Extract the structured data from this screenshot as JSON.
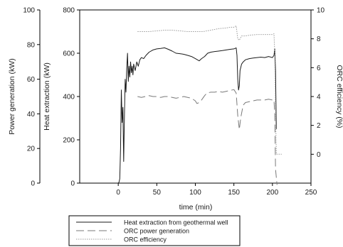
{
  "chart_data": {
    "type": "line",
    "xlabel": "time (min)",
    "x_ticks": [
      "0",
      "50",
      "100",
      "150",
      "200",
      "250"
    ],
    "xlim": [
      -50,
      250
    ],
    "y_axes": [
      {
        "id": "power",
        "label": "Power generation (kW)",
        "ylim": [
          0,
          100
        ],
        "ticks": [
          "0",
          "20",
          "40",
          "60",
          "80",
          "100"
        ]
      },
      {
        "id": "heat",
        "label": "Heat extraction (kW)",
        "ylim": [
          0,
          800
        ],
        "ticks": [
          "0",
          "200",
          "400",
          "600",
          "800"
        ]
      },
      {
        "id": "eff",
        "label": "ORC efficiency (%)",
        "ylim": [
          -2,
          10
        ],
        "ticks": [
          "0",
          "2",
          "4",
          "6",
          "8",
          "10"
        ]
      }
    ],
    "grid": false,
    "legend_position": "below",
    "series": [
      {
        "name": "Heat extraction from geothermal well",
        "axis": "heat",
        "style": "solid",
        "points": [
          [
            0,
            0
          ],
          [
            1,
            5
          ],
          [
            2,
            20
          ],
          [
            3,
            160
          ],
          [
            4,
            430
          ],
          [
            5,
            280
          ],
          [
            6,
            350
          ],
          [
            7,
            100
          ],
          [
            8,
            300
          ],
          [
            9,
            480
          ],
          [
            10,
            420
          ],
          [
            11,
            530
          ],
          [
            12,
            600
          ],
          [
            13,
            470
          ],
          [
            14,
            540
          ],
          [
            15,
            490
          ],
          [
            16,
            560
          ],
          [
            17,
            510
          ],
          [
            18,
            540
          ],
          [
            19,
            500
          ],
          [
            20,
            550
          ],
          [
            22,
            520
          ],
          [
            24,
            560
          ],
          [
            26,
            540
          ],
          [
            28,
            570
          ],
          [
            30,
            580
          ],
          [
            33,
            575
          ],
          [
            36,
            590
          ],
          [
            40,
            605
          ],
          [
            45,
            615
          ],
          [
            50,
            620
          ],
          [
            55,
            622
          ],
          [
            60,
            625
          ],
          [
            65,
            618
          ],
          [
            70,
            610
          ],
          [
            75,
            600
          ],
          [
            80,
            598
          ],
          [
            85,
            595
          ],
          [
            90,
            590
          ],
          [
            95,
            585
          ],
          [
            100,
            575
          ],
          [
            105,
            565
          ],
          [
            108,
            575
          ],
          [
            112,
            585
          ],
          [
            116,
            600
          ],
          [
            120,
            605
          ],
          [
            125,
            608
          ],
          [
            130,
            610
          ],
          [
            135,
            612
          ],
          [
            140,
            615
          ],
          [
            145,
            618
          ],
          [
            150,
            620
          ],
          [
            153,
            625
          ],
          [
            154,
            590
          ],
          [
            155,
            480
          ],
          [
            156,
            430
          ],
          [
            157,
            450
          ],
          [
            158,
            520
          ],
          [
            160,
            550
          ],
          [
            162,
            560
          ],
          [
            165,
            570
          ],
          [
            170,
            575
          ],
          [
            175,
            578
          ],
          [
            180,
            580
          ],
          [
            185,
            582
          ],
          [
            190,
            580
          ],
          [
            195,
            585
          ],
          [
            200,
            580
          ],
          [
            202,
            590
          ],
          [
            203,
            620
          ],
          [
            204,
            520
          ],
          [
            205,
            250
          ]
        ]
      },
      {
        "name": "ORC power generation",
        "axis": "power",
        "style": "dashed",
        "points": [
          [
            25,
            50
          ],
          [
            30,
            49.5
          ],
          [
            35,
            50
          ],
          [
            40,
            50.5
          ],
          [
            45,
            50
          ],
          [
            50,
            50
          ],
          [
            55,
            49.5
          ],
          [
            60,
            50
          ],
          [
            65,
            50
          ],
          [
            70,
            49.5
          ],
          [
            75,
            49
          ],
          [
            80,
            49.5
          ],
          [
            85,
            50
          ],
          [
            90,
            49.5
          ],
          [
            95,
            49
          ],
          [
            100,
            47.5
          ],
          [
            102,
            46
          ],
          [
            105,
            46.5
          ],
          [
            108,
            48
          ],
          [
            112,
            50.5
          ],
          [
            115,
            52
          ],
          [
            120,
            52.5
          ],
          [
            125,
            52.5
          ],
          [
            130,
            53
          ],
          [
            135,
            52.5
          ],
          [
            140,
            53
          ],
          [
            145,
            53.5
          ],
          [
            150,
            54
          ],
          [
            153,
            52
          ],
          [
            155,
            39
          ],
          [
            157,
            31
          ],
          [
            159,
            38
          ],
          [
            162,
            45
          ],
          [
            165,
            46.5
          ],
          [
            170,
            47
          ],
          [
            175,
            47.5
          ],
          [
            180,
            48
          ],
          [
            185,
            48
          ],
          [
            190,
            48
          ],
          [
            195,
            48.5
          ],
          [
            200,
            48
          ],
          [
            202,
            48
          ],
          [
            203,
            40
          ],
          [
            204,
            8
          ],
          [
            206,
            -1
          ]
        ]
      },
      {
        "name": "ORC efficiency",
        "axis": "eff",
        "style": "dotted",
        "points": [
          [
            25,
            8.5
          ],
          [
            30,
            8.5
          ],
          [
            40,
            8.5
          ],
          [
            50,
            8.55
          ],
          [
            60,
            8.6
          ],
          [
            70,
            8.6
          ],
          [
            80,
            8.55
          ],
          [
            90,
            8.5
          ],
          [
            100,
            8.5
          ],
          [
            110,
            8.5
          ],
          [
            120,
            8.6
          ],
          [
            130,
            8.7
          ],
          [
            140,
            8.75
          ],
          [
            145,
            8.8
          ],
          [
            150,
            8.8
          ],
          [
            153,
            8.9
          ],
          [
            155,
            8.0
          ],
          [
            157,
            7.9
          ],
          [
            160,
            8.2
          ],
          [
            165,
            8.2
          ],
          [
            170,
            8.25
          ],
          [
            180,
            8.3
          ],
          [
            190,
            8.3
          ],
          [
            195,
            8.3
          ],
          [
            200,
            8.3
          ],
          [
            202,
            8.35
          ],
          [
            203,
            7.0
          ],
          [
            204,
            3.0
          ],
          [
            205,
            0
          ],
          [
            206,
            0
          ],
          [
            212,
            0
          ]
        ]
      }
    ]
  }
}
